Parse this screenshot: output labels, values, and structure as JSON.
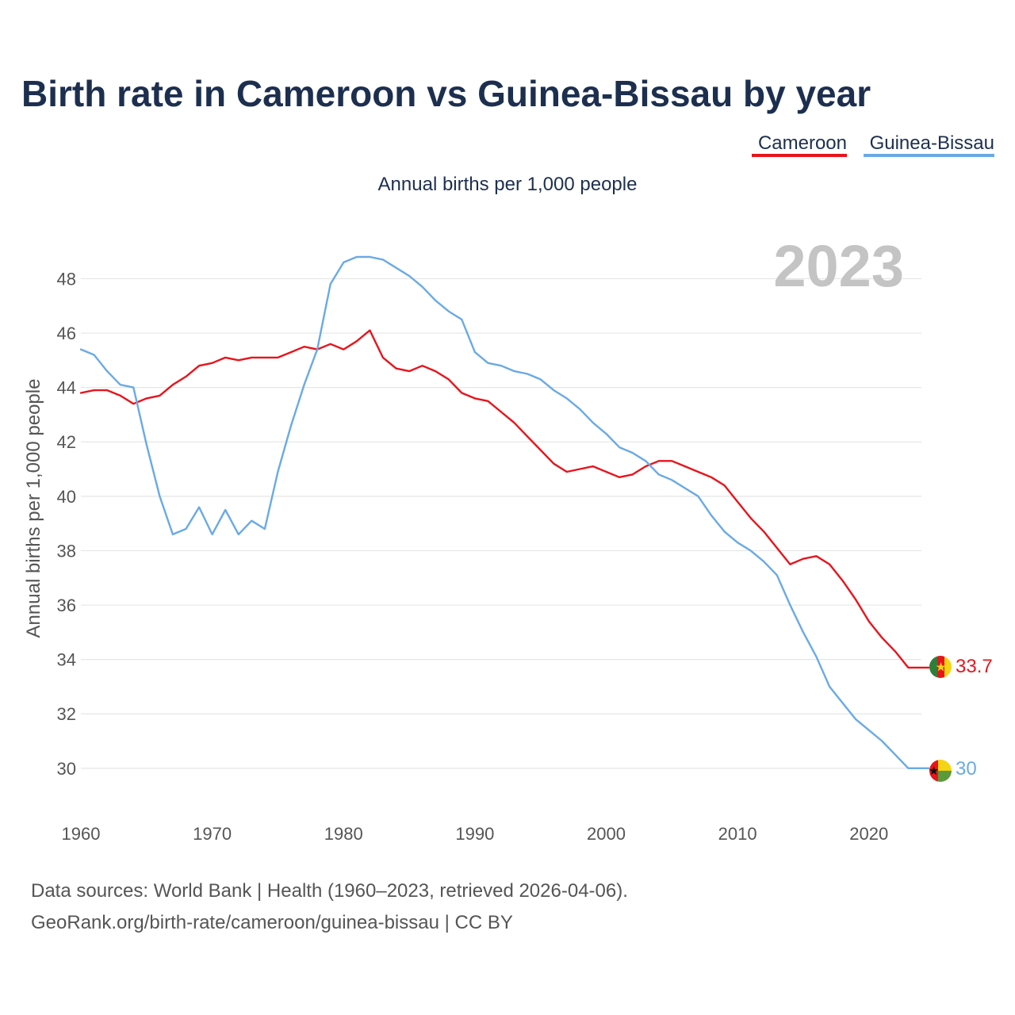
{
  "chart_data": {
    "type": "line",
    "title": "Birth rate in Cameroon vs Guinea-Bissau by year",
    "subtitle": "Annual births per 1,000 people",
    "ylabel": "Annual births per 1,000 people",
    "xlabel": "",
    "year_label": "2023",
    "x_start": 1960,
    "x_end": 2023,
    "xlim": [
      1960,
      2024
    ],
    "ylim": [
      28.8,
      49.5
    ],
    "x_ticks": [
      1960,
      1970,
      1980,
      1990,
      2000,
      2010,
      2020
    ],
    "y_ticks": [
      30,
      32,
      34,
      36,
      38,
      40,
      42,
      44,
      46,
      48
    ],
    "grid": true,
    "legend_position": "top-right",
    "series": [
      {
        "name": "Cameroon",
        "color": "#e8141c",
        "end_label": "33.7",
        "flag_icon": "cameroon-flag-icon",
        "values": [
          43.8,
          43.9,
          43.9,
          43.7,
          43.4,
          43.6,
          43.7,
          44.1,
          44.4,
          44.8,
          44.9,
          45.1,
          45.0,
          45.1,
          45.1,
          45.1,
          45.3,
          45.5,
          45.4,
          45.6,
          45.4,
          45.7,
          46.1,
          45.1,
          44.7,
          44.6,
          44.8,
          44.6,
          44.3,
          43.8,
          43.6,
          43.5,
          43.1,
          42.7,
          42.2,
          41.7,
          41.2,
          40.9,
          41.0,
          41.1,
          40.9,
          40.7,
          40.8,
          41.1,
          41.3,
          41.3,
          41.1,
          40.9,
          40.7,
          40.4,
          39.8,
          39.2,
          38.7,
          38.1,
          37.5,
          37.7,
          37.8,
          37.5,
          36.9,
          36.2,
          35.4,
          34.8,
          34.3,
          33.7
        ]
      },
      {
        "name": "Guinea-Bissau",
        "color": "#6aaae4",
        "end_label": "30",
        "flag_icon": "guinea-bissau-flag-icon",
        "values": [
          45.4,
          45.2,
          44.6,
          44.1,
          44.0,
          41.9,
          40.0,
          38.6,
          38.8,
          39.6,
          38.6,
          39.5,
          38.6,
          39.1,
          38.8,
          40.9,
          42.6,
          44.1,
          45.4,
          47.8,
          48.6,
          48.8,
          48.8,
          48.7,
          48.4,
          48.1,
          47.7,
          47.2,
          46.8,
          46.5,
          45.3,
          44.9,
          44.8,
          44.6,
          44.5,
          44.3,
          43.9,
          43.6,
          43.2,
          42.7,
          42.3,
          41.8,
          41.6,
          41.3,
          40.8,
          40.6,
          40.3,
          40.0,
          39.3,
          38.7,
          38.3,
          38.0,
          37.6,
          37.1,
          36.0,
          35.0,
          34.1,
          33.0,
          32.4,
          31.8,
          31.4,
          31.0,
          30.5,
          30.0
        ]
      }
    ]
  },
  "footer": {
    "source_line1": "Data sources: World Bank | Health (1960–2023, retrieved 2026-04-06).",
    "source_line2": "GeoRank.org/birth-rate/cameroon/guinea-bissau | CC BY"
  }
}
